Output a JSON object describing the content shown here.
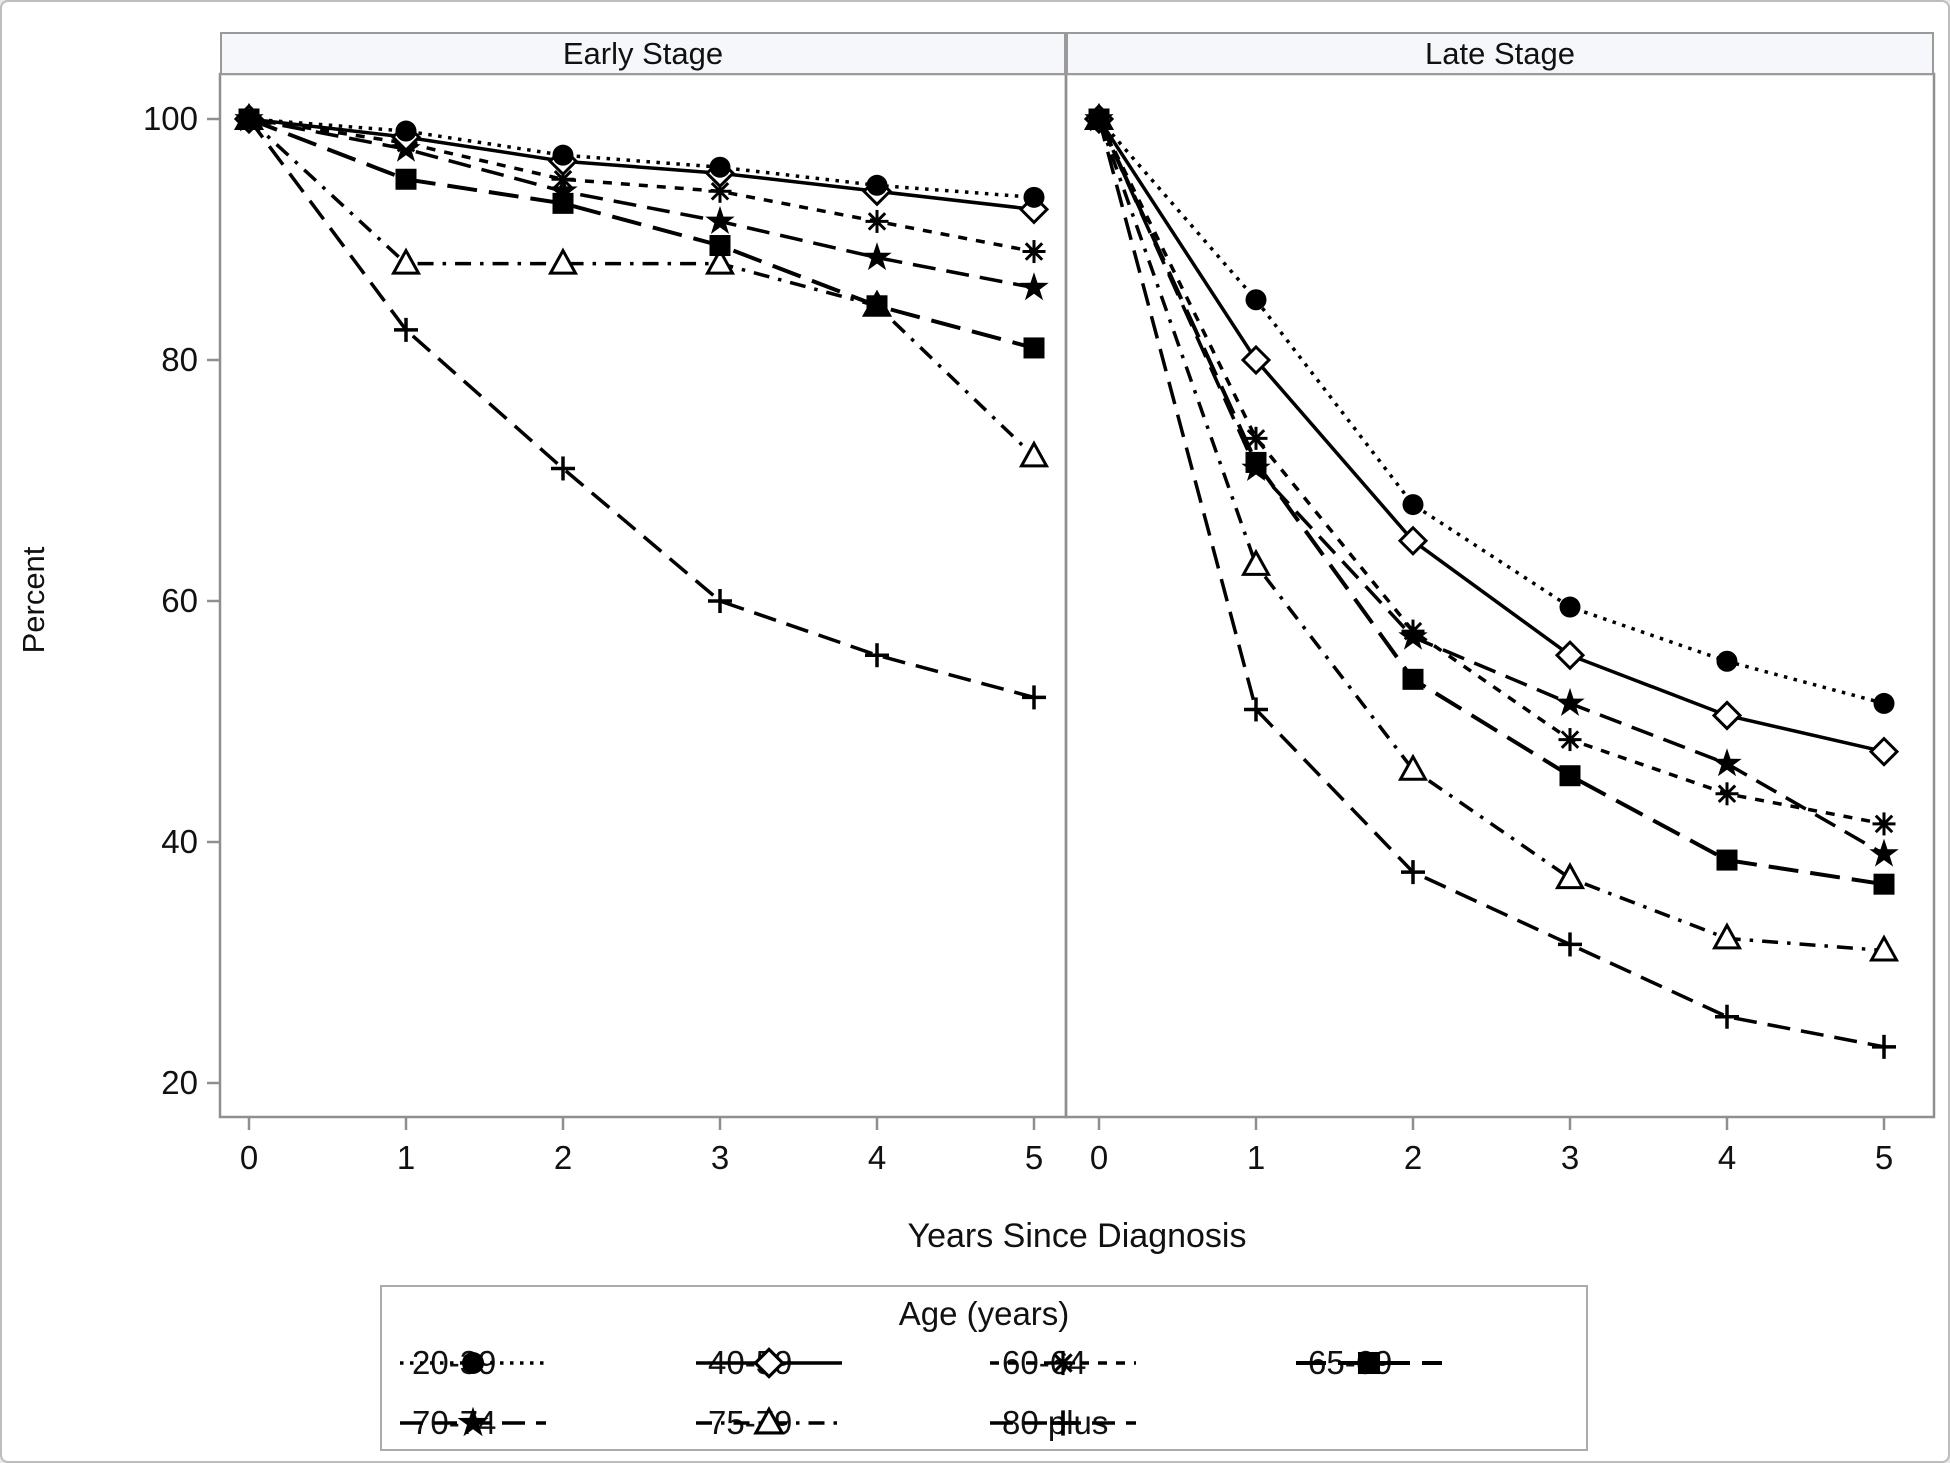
{
  "chart_data": {
    "type": "line",
    "title": "",
    "xlabel": "Years Since Diagnosis",
    "ylabel": "Percent",
    "x": [
      0,
      1,
      2,
      3,
      4,
      5
    ],
    "yticks": [
      20,
      40,
      60,
      80,
      100
    ],
    "ylim": [
      17,
      103.5
    ],
    "grid": false,
    "colors": {
      "series": "#000000",
      "axis": "#8f8f8f",
      "header_fill": "#f5f7fb",
      "background": "#ffffff"
    },
    "legend": {
      "title": "Age (years)",
      "position": "bottom",
      "entries": [
        {
          "label": "20-39",
          "marker": "filled-circle",
          "line": "dotted"
        },
        {
          "label": "40-59",
          "marker": "open-diamond",
          "line": "solid"
        },
        {
          "label": "60-64",
          "marker": "asterisk",
          "line": "short-dash"
        },
        {
          "label": "65-69",
          "marker": "filled-square",
          "line": "long-dash"
        },
        {
          "label": "70-74",
          "marker": "filled-star",
          "line": "dash"
        },
        {
          "label": "75-79",
          "marker": "open-triangle",
          "line": "dash-dot"
        },
        {
          "label": "80 plus",
          "marker": "plus",
          "line": "dash"
        }
      ]
    },
    "panels": [
      {
        "label": "Early Stage",
        "series": [
          {
            "name": "20-39",
            "marker": "filled-circle",
            "line": "dotted",
            "values": [
              100,
              99,
              97,
              96,
              94.5,
              93.5
            ]
          },
          {
            "name": "40-59",
            "marker": "open-diamond",
            "line": "solid",
            "values": [
              100,
              98.5,
              96.5,
              95.5,
              94,
              92.5
            ]
          },
          {
            "name": "60-64",
            "marker": "asterisk",
            "line": "short-dash",
            "values": [
              100,
              98,
              95,
              94,
              91.5,
              89
            ]
          },
          {
            "name": "65-69",
            "marker": "filled-square",
            "line": "long-dash",
            "values": [
              100,
              95,
              93,
              89.5,
              84.5,
              81
            ]
          },
          {
            "name": "70-74",
            "marker": "filled-star",
            "line": "dash",
            "values": [
              100,
              97.5,
              94,
              91.5,
              88.5,
              86
            ]
          },
          {
            "name": "75-79",
            "marker": "open-triangle",
            "line": "dash-dot",
            "values": [
              100,
              88,
              88,
              88,
              84.5,
              72
            ]
          },
          {
            "name": "80 plus",
            "marker": "plus",
            "line": "dash",
            "values": [
              100,
              82.5,
              71,
              60,
              55.5,
              52
            ]
          }
        ]
      },
      {
        "label": "Late Stage",
        "series": [
          {
            "name": "20-39",
            "marker": "filled-circle",
            "line": "dotted",
            "values": [
              100,
              85,
              68,
              59.5,
              55,
              51.5
            ]
          },
          {
            "name": "40-59",
            "marker": "open-diamond",
            "line": "solid",
            "values": [
              100,
              80,
              65,
              55.5,
              50.5,
              47.5
            ]
          },
          {
            "name": "60-64",
            "marker": "asterisk",
            "line": "short-dash",
            "values": [
              100,
              73.5,
              57.5,
              48.5,
              44,
              41.5
            ]
          },
          {
            "name": "65-69",
            "marker": "filled-square",
            "line": "long-dash",
            "values": [
              100,
              71.5,
              53.5,
              45.5,
              38.5,
              36.5
            ]
          },
          {
            "name": "70-74",
            "marker": "filled-star",
            "line": "dash",
            "values": [
              100,
              71,
              57,
              51.5,
              46.5,
              39
            ]
          },
          {
            "name": "75-79",
            "marker": "open-triangle",
            "line": "dash-dot",
            "values": [
              100,
              63,
              46,
              37,
              32,
              31
            ]
          },
          {
            "name": "80 plus",
            "marker": "plus",
            "line": "dash",
            "values": [
              100,
              51,
              37.5,
              31.5,
              25.5,
              23
            ]
          }
        ]
      }
    ]
  }
}
